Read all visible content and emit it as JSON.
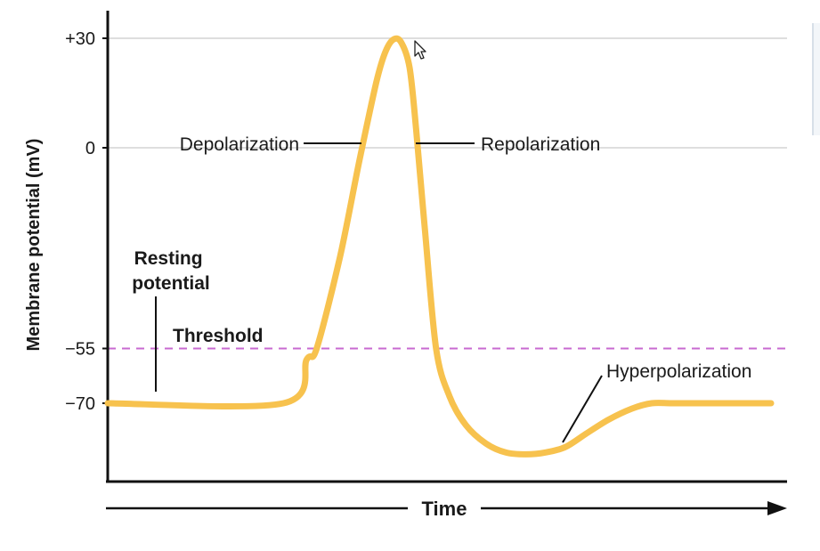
{
  "chart_data": {
    "type": "line",
    "xlabel": "Time",
    "ylabel": "Membrane potential (mV)",
    "yticks": [
      {
        "value": 30,
        "label": "+30"
      },
      {
        "value": 0,
        "label": "0"
      },
      {
        "value": -55,
        "label": "−55"
      },
      {
        "value": -70,
        "label": "−70"
      }
    ],
    "ylim": [
      -90,
      35
    ],
    "xlim": [
      0,
      100
    ],
    "threshold": {
      "value": -55,
      "label": "Threshold",
      "color": "#c86ad0"
    },
    "series": [
      {
        "color": "#f7c24e",
        "x": [
          0,
          26.5,
          30,
          31.5,
          35,
          38,
          40.5,
          41.8,
          43,
          44.2,
          45.5,
          46.5,
          47.8,
          49.5,
          51.5,
          54,
          57,
          60,
          63,
          66,
          69,
          72,
          75.5,
          79,
          82,
          85,
          89,
          93,
          100
        ],
        "y": [
          -70,
          -70,
          -58,
          -55,
          -30,
          -3,
          18,
          26,
          29.6,
          29,
          22,
          5,
          -22,
          -55,
          -68,
          -76,
          -81,
          -83.5,
          -84,
          -83.5,
          -82,
          -78.5,
          -74.5,
          -71.5,
          -70,
          -70,
          -70,
          -70,
          -70
        ]
      }
    ],
    "annotations": [
      {
        "key": "resting",
        "lines": [
          "Resting",
          "potential"
        ],
        "bold": true
      },
      {
        "key": "threshold",
        "text": "Threshold",
        "bold": true
      },
      {
        "key": "depolarization",
        "text": "Depolarization"
      },
      {
        "key": "repolarization",
        "text": "Repolarization"
      },
      {
        "key": "hyperpolarization",
        "text": "Hyperpolarization"
      }
    ]
  }
}
